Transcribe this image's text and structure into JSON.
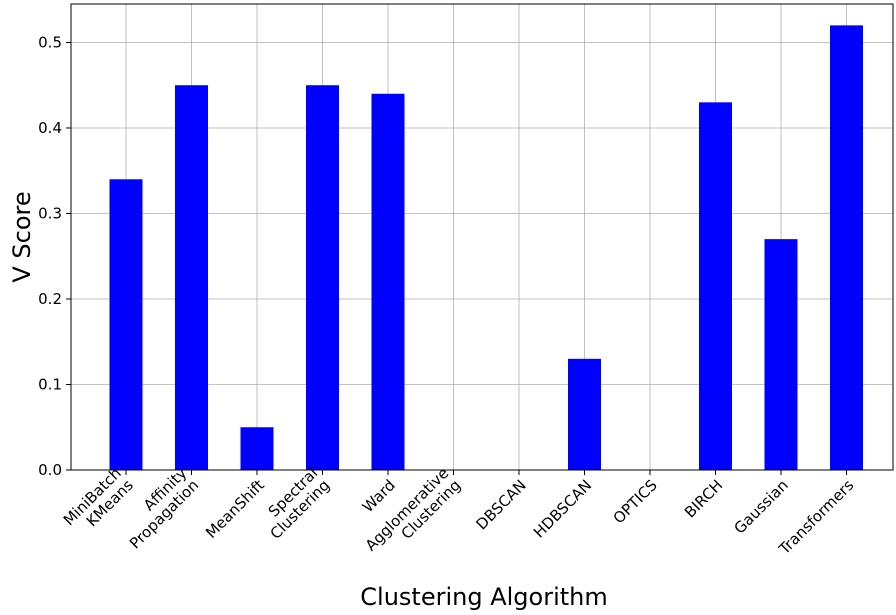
{
  "chart_data": {
    "type": "bar",
    "title": "",
    "xlabel": "Clustering Algorithm",
    "ylabel": "V Score",
    "categories": [
      [
        "MiniBatch",
        "KMeans"
      ],
      [
        "Affinity",
        "Propagation"
      ],
      [
        "MeanShift"
      ],
      [
        "Spectral",
        "Clustering"
      ],
      [
        "Ward"
      ],
      [
        "Agglomerative",
        "Clustering"
      ],
      [
        "DBSCAN"
      ],
      [
        "HDBSCAN"
      ],
      [
        "OPTICS"
      ],
      [
        "BIRCH"
      ],
      [
        "Gaussian"
      ],
      [
        "Transformers"
      ]
    ],
    "values": [
      0.34,
      0.45,
      0.05,
      0.45,
      0.44,
      0.0,
      0.0,
      0.13,
      0.0,
      0.43,
      0.27,
      0.52
    ],
    "yticks": [
      "0.0",
      "0.1",
      "0.2",
      "0.3",
      "0.4",
      "0.5"
    ],
    "ylim": [
      0,
      0.545
    ],
    "bar_color": "#0000ff",
    "grid": true,
    "legend": false
  }
}
